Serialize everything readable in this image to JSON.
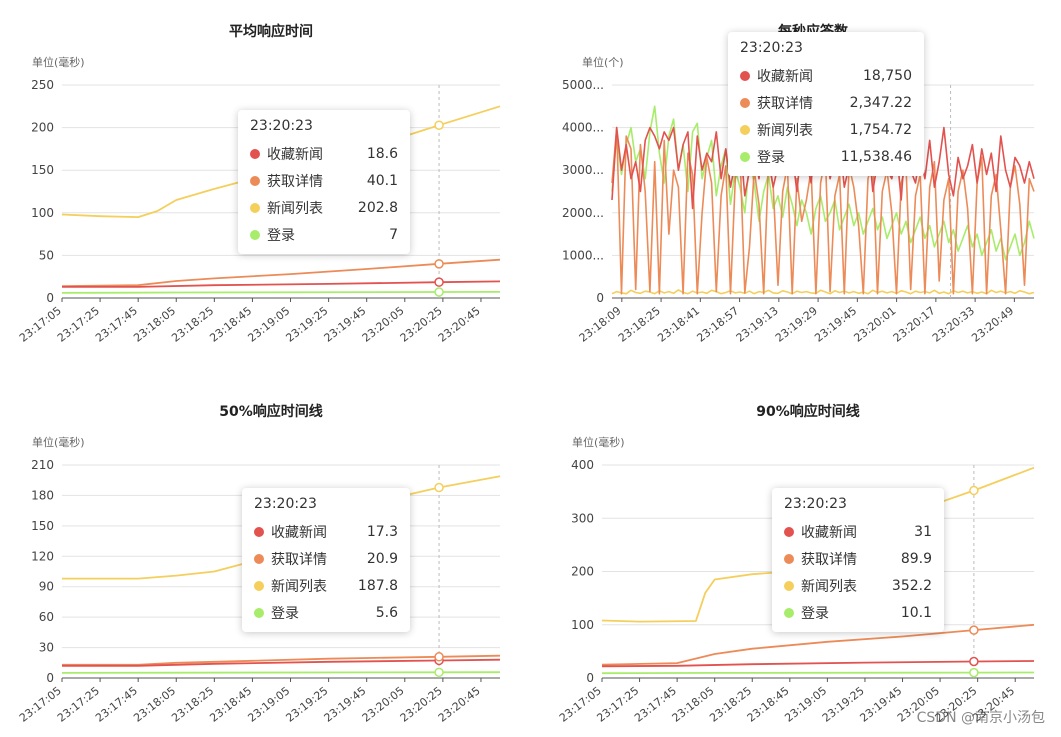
{
  "series_colors": [
    "#e2524f",
    "#ec8b58",
    "#f4cf5c",
    "#a8ec6b"
  ],
  "watermark": "CSDN @南京小汤包",
  "chart_data": [
    {
      "type": "line",
      "title": "平均响应时间",
      "unit": "单位(毫秒)",
      "ylim": [
        0,
        250
      ],
      "yticks": [
        "0",
        "50",
        "100",
        "150",
        "200",
        "250"
      ],
      "xticks": [
        "23:17:05",
        "23:17:25",
        "23:17:45",
        "23:18:05",
        "23:18:25",
        "23:18:45",
        "23:19:05",
        "23:19:25",
        "23:19:45",
        "23:20:05",
        "23:20:25",
        "23:20:45"
      ],
      "x_start": "23:17:05",
      "x_end": "23:20:55",
      "hover_time": "23:20:23",
      "series": [
        {
          "name": "收藏新闻",
          "points": [
            [
              "23:17:05",
              13
            ],
            [
              "23:17:45",
              13
            ],
            [
              "23:18:25",
              15
            ],
            [
              "23:19:25",
              16.5
            ],
            [
              "23:20:23",
              18.6
            ],
            [
              "23:20:55",
              19.5
            ]
          ]
        },
        {
          "name": "获取详情",
          "points": [
            [
              "23:17:05",
              14
            ],
            [
              "23:17:45",
              15
            ],
            [
              "23:18:05",
              20
            ],
            [
              "23:18:25",
              23
            ],
            [
              "23:19:05",
              28
            ],
            [
              "23:19:45",
              34
            ],
            [
              "23:20:23",
              40.1
            ],
            [
              "23:20:55",
              45
            ]
          ]
        },
        {
          "name": "新闻列表",
          "points": [
            [
              "23:17:05",
              98
            ],
            [
              "23:17:25",
              96
            ],
            [
              "23:17:45",
              95
            ],
            [
              "23:17:55",
              102
            ],
            [
              "23:18:05",
              115
            ],
            [
              "23:18:25",
              128
            ],
            [
              "23:18:45",
              140
            ],
            [
              "23:19:05",
              152
            ],
            [
              "23:19:45",
              175
            ],
            [
              "23:20:05",
              190
            ],
            [
              "23:20:23",
              202.8
            ],
            [
              "23:20:55",
              225
            ]
          ]
        },
        {
          "name": "登录",
          "points": [
            [
              "23:17:05",
              6
            ],
            [
              "23:18:05",
              6.5
            ],
            [
              "23:20:23",
              7
            ],
            [
              "23:20:55",
              7.2
            ]
          ]
        }
      ],
      "tooltip": [
        {
          "name": "收藏新闻",
          "value": "18.6"
        },
        {
          "name": "获取详情",
          "value": "40.1"
        },
        {
          "name": "新闻列表",
          "value": "202.8"
        },
        {
          "name": "登录",
          "value": "7"
        }
      ]
    },
    {
      "type": "line",
      "title": "每秒应答数",
      "unit": "单位(个)",
      "ylim": [
        0,
        5000
      ],
      "yticks": [
        "0",
        "1000...",
        "2000...",
        "3000...",
        "4000...",
        "5000..."
      ],
      "xticks": [
        "23:18:09",
        "23:18:25",
        "23:18:41",
        "23:18:57",
        "23:19:13",
        "23:19:29",
        "23:19:45",
        "23:20:01",
        "23:20:17",
        "23:20:33",
        "23:20:49"
      ],
      "x_start": "23:18:05",
      "x_end": "23:20:57",
      "hover_time": "23:20:23",
      "series": [
        {
          "name": "收藏新闻",
          "values": [
            2300,
            4000,
            3000,
            3600,
            2800,
            3200,
            2500,
            3700,
            4000,
            3800,
            3500,
            3900,
            3700,
            4000,
            3000,
            3600,
            3900,
            2100,
            3800,
            3000,
            3400,
            3200,
            3900,
            2800,
            3500,
            2600,
            3200,
            3700,
            2400,
            3000,
            3500,
            2800,
            4000,
            3300,
            2600,
            3100,
            3800,
            2900,
            3400,
            2500,
            3600,
            3200,
            2700,
            3900,
            3000,
            3500,
            2800,
            3300,
            3700,
            2600,
            3100,
            3600,
            2900,
            3400,
            3800,
            2500,
            3200,
            3700,
            3000,
            2800,
            3500,
            2300,
            3900,
            3000,
            2700,
            3400,
            2800,
            3700,
            2600,
            3200,
            4000,
            2900,
            2400,
            3300,
            2800,
            3100,
            3600,
            2700,
            3500,
            2900,
            3400,
            2500,
            3800,
            3000,
            2600,
            3300,
            3100,
            2700,
            3200,
            2800
          ]
        },
        {
          "name": "获取详情",
          "values": [
            2700,
            4000,
            100,
            3800,
            3500,
            200,
            3600,
            2500,
            150,
            3200,
            100,
            3700,
            1500,
            3000,
            2600,
            100,
            3400,
            2900,
            100,
            2000,
            3300,
            2700,
            150,
            2400,
            3100,
            100,
            2800,
            3400,
            120,
            1200,
            3000,
            2200,
            100,
            3200,
            2600,
            300,
            2500,
            3100,
            100,
            2800,
            1800,
            2300,
            3000,
            100,
            2700,
            3300,
            150,
            2400,
            2900,
            100,
            3100,
            2600,
            1700,
            100,
            2800,
            3200,
            100,
            2500,
            3000,
            2000,
            100,
            2700,
            3100,
            200,
            2400,
            2900,
            100,
            2600,
            3200,
            400,
            2300,
            2800,
            100,
            2500,
            3000,
            2100,
            100,
            2700,
            3300,
            100,
            2400,
            2900,
            1600,
            100,
            2600,
            3100,
            2200,
            300,
            2800,
            2500
          ]
        },
        {
          "name": "新闻列表",
          "values": [
            100,
            150,
            120,
            100,
            180,
            130,
            110,
            160,
            140,
            100,
            170,
            120,
            150,
            110,
            190,
            130,
            100,
            160,
            120,
            140,
            110,
            180,
            150,
            100,
            130,
            170,
            120,
            140,
            110,
            160,
            100,
            150,
            130,
            180,
            120,
            110,
            170,
            140,
            100,
            160,
            130,
            150,
            120,
            110,
            180,
            140,
            100,
            170,
            130,
            160,
            120,
            150,
            110,
            140,
            100,
            180,
            130,
            160,
            120,
            150,
            110,
            170,
            140,
            100,
            160,
            130,
            150,
            120,
            180,
            110,
            140,
            100,
            170,
            130,
            160,
            120,
            150,
            110,
            140,
            100,
            180,
            130,
            160,
            120,
            150,
            110,
            170,
            140,
            100,
            130
          ]
        },
        {
          "name": "登录",
          "values": [
            2500,
            3800,
            2900,
            3600,
            4000,
            3200,
            3500,
            2800,
            3900,
            4500,
            3400,
            2700,
            3800,
            4200,
            3000,
            3600,
            2500,
            3900,
            4100,
            2800,
            3300,
            3700,
            2400,
            3100,
            3500,
            2200,
            3000,
            2600,
            2000,
            3200,
            2700,
            1800,
            2500,
            2900,
            2100,
            2400,
            1900,
            2600,
            2200,
            1700,
            2300,
            2000,
            1500,
            2100,
            2400,
            1800,
            2000,
            2300,
            1600,
            1900,
            2200,
            1700,
            2000,
            1500,
            1800,
            2100,
            1600,
            1900,
            1400,
            1700,
            2000,
            1500,
            1800,
            1300,
            1600,
            1900,
            1400,
            1700,
            1200,
            1500,
            1800,
            1300,
            1600,
            1100,
            1400,
            1700,
            1200,
            1500,
            1000,
            1300,
            1600,
            1100,
            1400,
            900,
            1200,
            1500,
            1000,
            1300,
            1800,
            1400
          ]
        }
      ],
      "tooltip": [
        {
          "name": "收藏新闻",
          "value": "18,750"
        },
        {
          "name": "获取详情",
          "value": "2,347.22"
        },
        {
          "name": "新闻列表",
          "value": "1,754.72"
        },
        {
          "name": "登录",
          "value": "11,538.46"
        }
      ]
    },
    {
      "type": "line",
      "title": "50%响应时间线",
      "unit": "单位(毫秒)",
      "ylim": [
        0,
        210
      ],
      "yticks": [
        "0",
        "30",
        "60",
        "90",
        "120",
        "150",
        "180",
        "210"
      ],
      "xticks": [
        "23:17:05",
        "23:17:25",
        "23:17:45",
        "23:18:05",
        "23:18:25",
        "23:18:45",
        "23:19:05",
        "23:19:25",
        "23:19:45",
        "23:20:05",
        "23:20:25",
        "23:20:45"
      ],
      "x_start": "23:17:05",
      "x_end": "23:20:55",
      "hover_time": "23:20:23",
      "series": [
        {
          "name": "收藏新闻",
          "points": [
            [
              "23:17:05",
              12
            ],
            [
              "23:17:45",
              12
            ],
            [
              "23:18:25",
              14
            ],
            [
              "23:19:25",
              16
            ],
            [
              "23:20:23",
              17.3
            ],
            [
              "23:20:55",
              18
            ]
          ]
        },
        {
          "name": "获取详情",
          "points": [
            [
              "23:17:05",
              13
            ],
            [
              "23:17:45",
              13
            ],
            [
              "23:18:05",
              15
            ],
            [
              "23:18:45",
              17
            ],
            [
              "23:19:25",
              19
            ],
            [
              "23:20:23",
              20.9
            ],
            [
              "23:20:55",
              22
            ]
          ]
        },
        {
          "name": "新闻列表",
          "points": [
            [
              "23:17:05",
              98
            ],
            [
              "23:17:25",
              98
            ],
            [
              "23:17:45",
              98
            ],
            [
              "23:18:05",
              101
            ],
            [
              "23:18:25",
              105
            ],
            [
              "23:18:45",
              115
            ],
            [
              "23:19:05",
              135
            ],
            [
              "23:19:25",
              155
            ],
            [
              "23:19:45",
              170
            ],
            [
              "23:20:05",
              180
            ],
            [
              "23:20:23",
              187.8
            ],
            [
              "23:20:55",
              199
            ]
          ]
        },
        {
          "name": "登录",
          "points": [
            [
              "23:17:05",
              5
            ],
            [
              "23:18:05",
              5.2
            ],
            [
              "23:20:23",
              5.6
            ],
            [
              "23:20:55",
              5.7
            ]
          ]
        }
      ],
      "tooltip": [
        {
          "name": "收藏新闻",
          "value": "17.3"
        },
        {
          "name": "获取详情",
          "value": "20.9"
        },
        {
          "name": "新闻列表",
          "value": "187.8"
        },
        {
          "name": "登录",
          "value": "5.6"
        }
      ]
    },
    {
      "type": "line",
      "title": "90%响应时间线",
      "unit": "单位(毫秒)",
      "ylim": [
        0,
        400
      ],
      "yticks": [
        "0",
        "100",
        "200",
        "300",
        "400"
      ],
      "xticks": [
        "23:17:05",
        "23:17:25",
        "23:17:45",
        "23:18:05",
        "23:18:25",
        "23:18:45",
        "23:19:05",
        "23:19:25",
        "23:19:45",
        "23:20:05",
        "23:20:25",
        "23:20:45"
      ],
      "x_start": "23:17:05",
      "x_end": "23:20:55",
      "hover_time": "23:20:23",
      "series": [
        {
          "name": "收藏新闻",
          "points": [
            [
              "23:17:05",
              22
            ],
            [
              "23:17:45",
              23
            ],
            [
              "23:18:25",
              26
            ],
            [
              "23:19:25",
              29
            ],
            [
              "23:20:23",
              31
            ],
            [
              "23:20:55",
              32
            ]
          ]
        },
        {
          "name": "获取详情",
          "points": [
            [
              "23:17:05",
              25
            ],
            [
              "23:17:45",
              28
            ],
            [
              "23:18:05",
              45
            ],
            [
              "23:18:25",
              55
            ],
            [
              "23:19:05",
              68
            ],
            [
              "23:19:45",
              78
            ],
            [
              "23:20:23",
              89.9
            ],
            [
              "23:20:55",
              100
            ]
          ]
        },
        {
          "name": "新闻列表",
          "points": [
            [
              "23:17:05",
              108
            ],
            [
              "23:17:25",
              106
            ],
            [
              "23:17:55",
              107
            ],
            [
              "23:18:00",
              160
            ],
            [
              "23:18:05",
              185
            ],
            [
              "23:18:25",
              195
            ],
            [
              "23:18:45",
              200
            ],
            [
              "23:19:05",
              210
            ],
            [
              "23:19:25",
              250
            ],
            [
              "23:19:45",
              295
            ],
            [
              "23:20:05",
              330
            ],
            [
              "23:20:23",
              352.2
            ],
            [
              "23:20:55",
              395
            ]
          ]
        },
        {
          "name": "登录",
          "points": [
            [
              "23:17:05",
              9
            ],
            [
              "23:18:05",
              9.5
            ],
            [
              "23:20:23",
              10.1
            ],
            [
              "23:20:55",
              10.3
            ]
          ]
        }
      ],
      "tooltip": [
        {
          "name": "收藏新闻",
          "value": "31"
        },
        {
          "name": "获取详情",
          "value": "89.9"
        },
        {
          "name": "新闻列表",
          "value": "352.2"
        },
        {
          "name": "登录",
          "value": "10.1"
        }
      ]
    }
  ]
}
